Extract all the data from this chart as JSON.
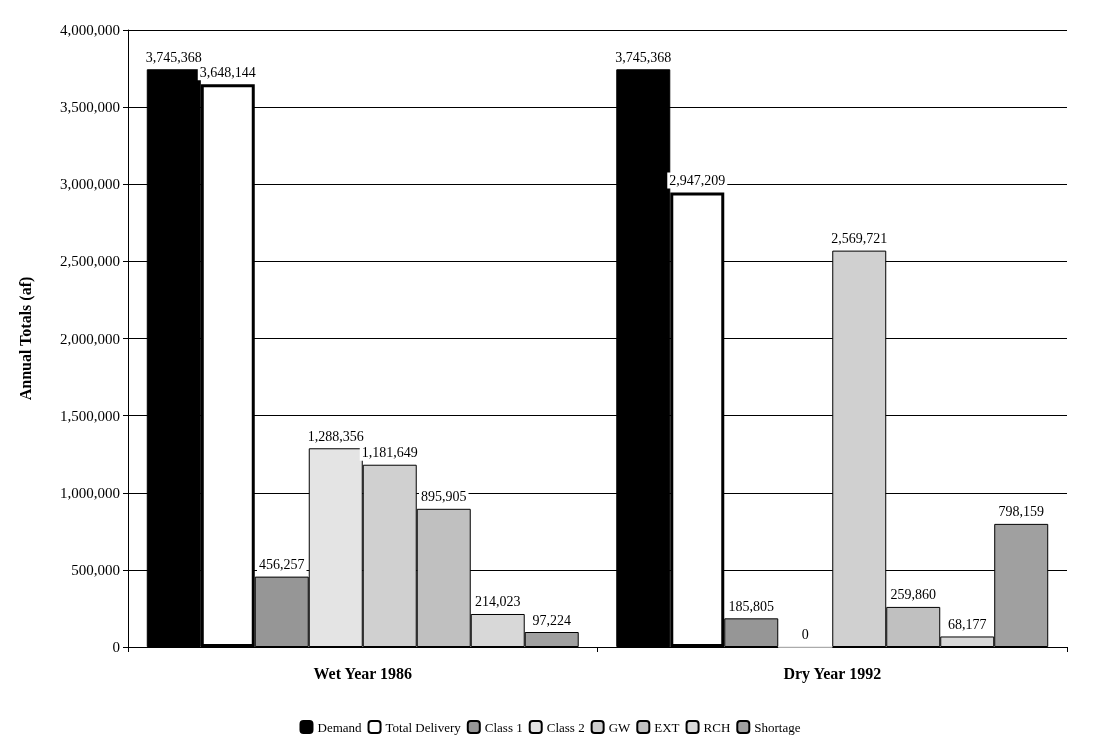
{
  "chart_data": {
    "type": "bar",
    "ylabel": "Annual Totals (af)",
    "categories": [
      "Wet Year 1986",
      "Dry Year 1992"
    ],
    "series": [
      {
        "name": "Demand",
        "color": "#000000",
        "values": [
          3745368,
          3745368
        ],
        "value_labels": [
          "3,745,368",
          "3,745,368"
        ]
      },
      {
        "name": "Total Delivery",
        "color": "#ffffff",
        "values": [
          3648144,
          2947209
        ],
        "value_labels": [
          "3,648,144",
          "2,947,209"
        ]
      },
      {
        "name": "Class 1",
        "color": "#969696",
        "values": [
          456257,
          185805
        ],
        "value_labels": [
          "456,257",
          "185,805"
        ]
      },
      {
        "name": "Class 2",
        "color": "#e4e4e4",
        "values": [
          1288356,
          0
        ],
        "value_labels": [
          "1,288,356",
          "0"
        ]
      },
      {
        "name": "GW",
        "color": "#d0d0d0",
        "values": [
          1181649,
          2569721
        ],
        "value_labels": [
          "1,181,649",
          "2,569,721"
        ]
      },
      {
        "name": "EXT",
        "color": "#c0c0c0",
        "values": [
          895905,
          259860
        ],
        "value_labels": [
          "895,905",
          "259,860"
        ]
      },
      {
        "name": "RCH",
        "color": "#d8d8d8",
        "values": [
          214023,
          68177
        ],
        "value_labels": [
          "214,023",
          "68,177"
        ]
      },
      {
        "name": "Shortage",
        "color": "#a0a0a0",
        "values": [
          97224,
          798159
        ],
        "value_labels": [
          "97,224",
          "798,159"
        ]
      }
    ],
    "ylim": [
      0,
      4000000
    ],
    "yticks": [
      0,
      {
        "value": 500000,
        "label": "500,000"
      },
      {
        "value": 1000000,
        "label": "1,000,000"
      },
      {
        "value": 1500000,
        "label": "1,500,000"
      },
      {
        "value": 2000000,
        "label": "2,000,000"
      },
      {
        "value": 2500000,
        "label": "2,500,000"
      },
      {
        "value": 3000000,
        "label": "3,000,000"
      },
      {
        "value": 3500000,
        "label": "3,500,000"
      },
      {
        "value": 4000000,
        "label": "4,000,000"
      }
    ],
    "grid": "y",
    "legend": "bottom"
  }
}
